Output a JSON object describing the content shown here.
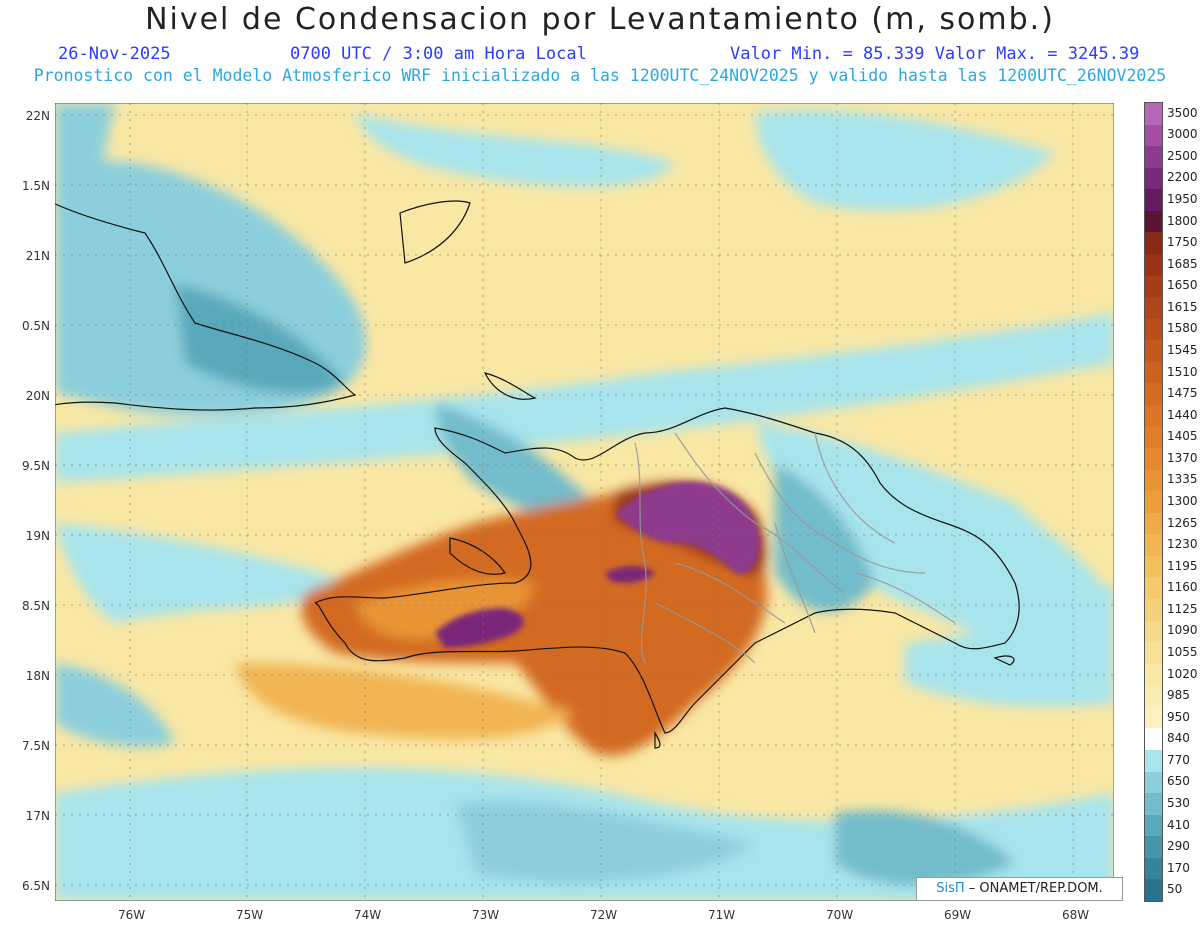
{
  "header": {
    "title": "Nivel de Condensacion por Levantamiento (m, somb.)",
    "date": "26-Nov-2025",
    "time": "0700 UTC / 3:00 am Hora Local",
    "minmax": "Valor Min. = 85.339  Valor Max. = 3245.39",
    "subtitle": "Pronostico con el Modelo Atmosferico WRF inicializado a las 1200UTC_24NOV2025 y valido hasta las  1200UTC_26NOV2025"
  },
  "axes": {
    "lat_labels": [
      "22N",
      "1.5N",
      "21N",
      "0.5N",
      "20N",
      "9.5N",
      "19N",
      "8.5N",
      "18N",
      "7.5N",
      "17N",
      "6.5N"
    ],
    "lon_labels": [
      "76W",
      "75W",
      "74W",
      "73W",
      "72W",
      "71W",
      "70W",
      "69W",
      "68W"
    ]
  },
  "colorbar": {
    "labels": [
      "3500",
      "3000",
      "2500",
      "2200",
      "1950",
      "1800",
      "1750",
      "1685",
      "1650",
      "1615",
      "1580",
      "1545",
      "1510",
      "1475",
      "1440",
      "1405",
      "1370",
      "1335",
      "1300",
      "1265",
      "1230",
      "1195",
      "1160",
      "1125",
      "1090",
      "1055",
      "1020",
      "985",
      "950",
      "840",
      "770",
      "650",
      "530",
      "410",
      "290",
      "170",
      "50"
    ],
    "colors": [
      "#b866b8",
      "#a44ea4",
      "#8e3a8e",
      "#7a2878",
      "#641c60",
      "#5a1434",
      "#8a2a14",
      "#9a3416",
      "#a63e18",
      "#b0471a",
      "#b9501c",
      "#c2591e",
      "#cb6220",
      "#d36b22",
      "#da7426",
      "#e07e2a",
      "#e4892e",
      "#e89434",
      "#eb9f3c",
      "#eeaa46",
      "#f1b552",
      "#f3c060",
      "#f5c96e",
      "#f6d17c",
      "#f7d98a",
      "#f8e096",
      "#f9e7a4",
      "#faedb2",
      "#fbf2c0",
      "#ffffff",
      "#a8e4ec",
      "#8ccfdc",
      "#72bccb",
      "#5aa8bb",
      "#4795ab",
      "#36849b",
      "#2a738c"
    ]
  },
  "credit": {
    "brand": "SisΠ",
    "text": " – ONAMET/REP.DOM."
  }
}
